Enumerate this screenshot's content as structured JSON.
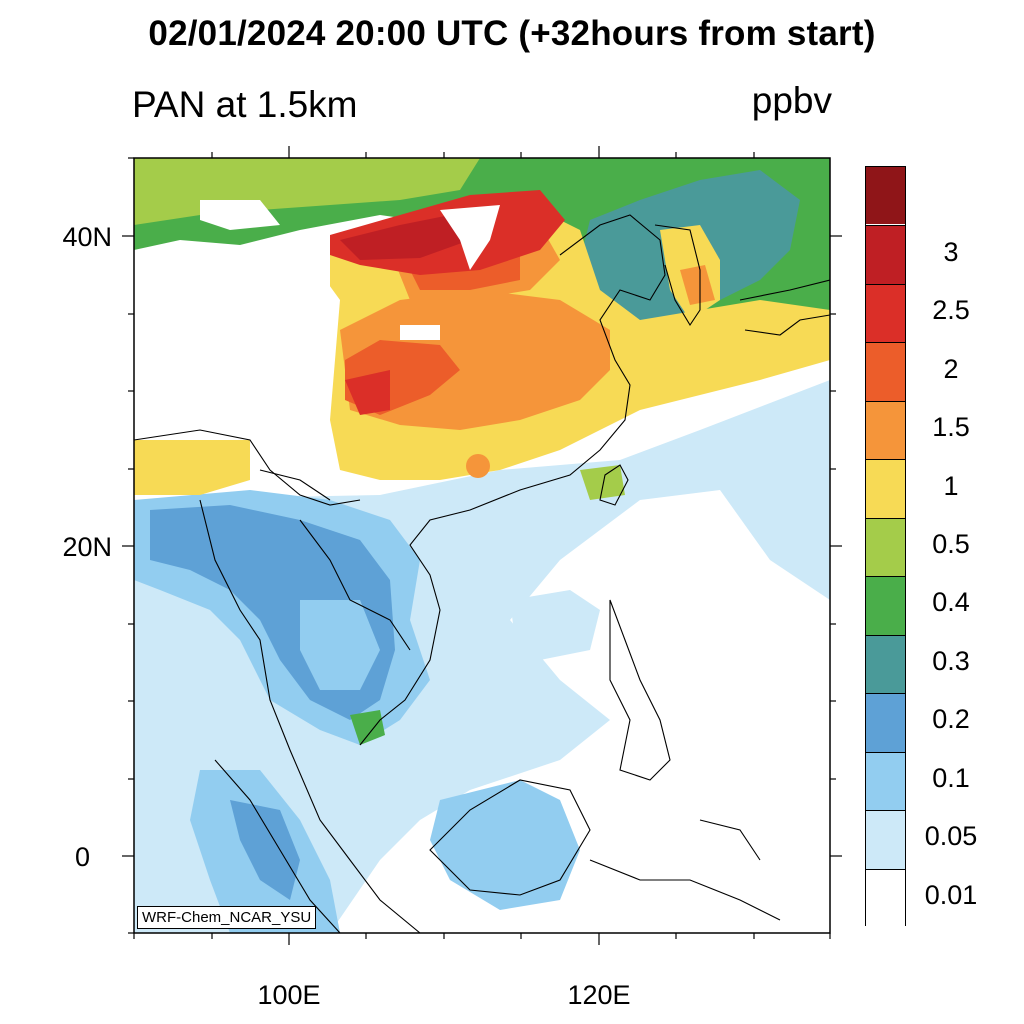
{
  "header": {
    "title": "02/01/2024 20:00 UTC (+32hours from start)",
    "subtitle_left": "PAN at 1.5km",
    "subtitle_right": "ppbv"
  },
  "axes": {
    "lat_labels": [
      "40N",
      "20N",
      "0"
    ],
    "lon_labels": [
      "100E",
      "120E"
    ]
  },
  "credit": "WRF-Chem_NCAR_YSU",
  "legend": {
    "levels": [
      {
        "color": "#ffffff",
        "label": "0.01"
      },
      {
        "color": "#cde9f8",
        "label": "0.05"
      },
      {
        "color": "#92cdf0",
        "label": "0.1"
      },
      {
        "color": "#5ea1d6",
        "label": "0.2"
      },
      {
        "color": "#4a9a99",
        "label": "0.3"
      },
      {
        "color": "#4aae4a",
        "label": "0.4"
      },
      {
        "color": "#a4cc4a",
        "label": "0.5"
      },
      {
        "color": "#f7da55",
        "label": "1"
      },
      {
        "color": "#f5953a",
        "label": "1.5"
      },
      {
        "color": "#ec5d2a",
        "label": "2"
      },
      {
        "color": "#db2f28",
        "label": "2.5"
      },
      {
        "color": "#bf1f24",
        "label": "3"
      },
      {
        "color": "#8f1518",
        "label": ""
      }
    ]
  }
}
